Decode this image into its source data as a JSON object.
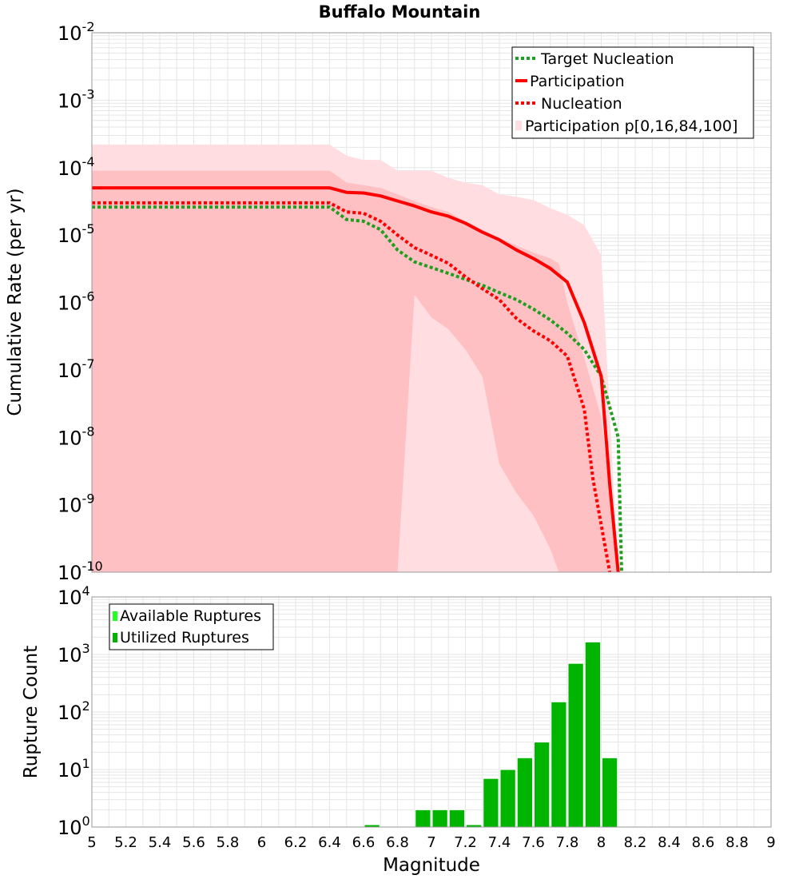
{
  "title": "Buffalo Mountain",
  "xlabel": "Magnitude",
  "x_ticks": [
    "5",
    "5.2",
    "5.4",
    "5.6",
    "5.8",
    "6",
    "6.2",
    "6.4",
    "6.6",
    "6.8",
    "7",
    "7.2",
    "7.4",
    "7.6",
    "7.8",
    "8",
    "8.2",
    "8.4",
    "8.6",
    "8.8",
    "9"
  ],
  "colors": {
    "participation": "#ff0000",
    "nucleation": "#ff0000",
    "target": "#1f9f1f",
    "band_outer": "#ffdde0",
    "band_inner": "#ffc0c4",
    "available": "#22ff22",
    "utilized": "#00b400",
    "grid": "#e6e6e6"
  },
  "chart_data": [
    {
      "type": "line",
      "ylabel": "Cumulative Rate (per yr)",
      "yscale": "log",
      "xlim": [
        5,
        9
      ],
      "ylim": [
        1e-10,
        0.01
      ],
      "y_ticks": [
        {
          "base": "10",
          "exp": "-2"
        },
        {
          "base": "10",
          "exp": "-3"
        },
        {
          "base": "10",
          "exp": "-4"
        },
        {
          "base": "10",
          "exp": "-5"
        },
        {
          "base": "10",
          "exp": "-6"
        },
        {
          "base": "10",
          "exp": "-7"
        },
        {
          "base": "10",
          "exp": "-8"
        },
        {
          "base": "10",
          "exp": "-9"
        },
        {
          "base": "10",
          "exp": "-10"
        }
      ],
      "legend": [
        "Target Nucleation",
        "Participation",
        "Nucleation",
        "Participation p[0,16,84,100]"
      ],
      "legend_position": "top-right",
      "band_outer": {
        "x": [
          5.0,
          6.4,
          6.5,
          6.6,
          6.7,
          6.8,
          6.9,
          7.0,
          7.1,
          7.2,
          7.3,
          7.4,
          7.5,
          7.6,
          7.7,
          7.8,
          7.9,
          8.0,
          8.1
        ],
        "upper": [
          0.00022,
          0.00022,
          0.00015,
          0.00013,
          0.00013,
          9e-05,
          9e-05,
          9e-05,
          7e-05,
          6e-05,
          5.5e-05,
          4e-05,
          3.7e-05,
          3.3e-05,
          2.5e-05,
          2e-05,
          1.4e-05,
          5e-06,
          1e-10
        ],
        "lower": [
          1e-10,
          1e-10,
          1e-10,
          1e-10,
          1e-10,
          1e-10,
          1e-10,
          1e-10,
          1e-10,
          1e-10,
          1e-10,
          1e-10,
          1e-10,
          1e-10,
          1e-10,
          1e-10,
          1e-10,
          1e-10,
          1e-10
        ]
      },
      "band_inner": {
        "x": [
          5.0,
          6.4,
          6.5,
          6.6,
          6.7,
          6.8,
          6.9,
          7.0,
          7.1,
          7.2,
          7.3,
          7.4,
          7.5,
          7.6,
          7.7,
          7.75,
          7.8,
          7.9,
          8.0,
          8.1
        ],
        "upper": [
          9e-05,
          9e-05,
          6e-05,
          5.5e-05,
          5e-05,
          4e-05,
          3.2e-05,
          2.6e-05,
          2.2e-05,
          1.6e-05,
          1.2e-05,
          9e-06,
          7e-06,
          5.5e-06,
          4.5e-06,
          3.8e-06,
          1e-06,
          1.5e-07,
          2e-08,
          1e-10
        ],
        "lower": [
          1e-10,
          1e-10,
          1e-10,
          1e-10,
          1e-10,
          1e-10,
          1.3e-06,
          6e-07,
          4e-07,
          2e-07,
          8e-08,
          4e-09,
          1.5e-09,
          7e-10,
          2.2e-10,
          1e-10,
          1e-10,
          1e-10,
          1e-10,
          1e-10
        ]
      },
      "series": [
        {
          "name": "Participation",
          "x": [
            5.0,
            6.4,
            6.5,
            6.6,
            6.7,
            6.8,
            6.9,
            7.0,
            7.1,
            7.2,
            7.3,
            7.4,
            7.5,
            7.6,
            7.7,
            7.8,
            7.9,
            8.0,
            8.05,
            8.1
          ],
          "y": [
            5e-05,
            5e-05,
            4.3e-05,
            4.2e-05,
            3.8e-05,
            3.2e-05,
            2.7e-05,
            2.2e-05,
            1.9e-05,
            1.5e-05,
            1.1e-05,
            8.5e-06,
            6e-06,
            4.5e-06,
            3.2e-06,
            2e-06,
            5e-07,
            8e-08,
            2e-09,
            1e-10
          ]
        },
        {
          "name": "Nucleation",
          "x": [
            5.0,
            6.4,
            6.5,
            6.6,
            6.7,
            6.8,
            6.9,
            7.0,
            7.1,
            7.2,
            7.3,
            7.4,
            7.5,
            7.6,
            7.7,
            7.8,
            7.9,
            7.95,
            8.0,
            8.05
          ],
          "y": [
            3e-05,
            3e-05,
            2.2e-05,
            2.1e-05,
            1.6e-05,
            1e-05,
            6.5e-06,
            5e-06,
            3.8e-06,
            2.4e-06,
            1.6e-06,
            1.1e-06,
            5.8e-07,
            3.8e-07,
            2.7e-07,
            1.6e-07,
            2.6e-08,
            2.5e-09,
            5e-10,
            1e-10
          ]
        },
        {
          "name": "Target Nucleation",
          "x": [
            5.0,
            6.4,
            6.5,
            6.6,
            6.7,
            6.8,
            6.9,
            7.0,
            7.1,
            7.2,
            7.3,
            7.4,
            7.5,
            7.6,
            7.7,
            7.8,
            7.9,
            8.0,
            8.1,
            8.12
          ],
          "y": [
            2.6e-05,
            2.6e-05,
            1.7e-05,
            1.6e-05,
            1.2e-05,
            6e-06,
            4e-06,
            3.3e-06,
            2.7e-06,
            2.2e-06,
            1.8e-06,
            1.4e-06,
            1.1e-06,
            8e-07,
            5.5e-07,
            3.5e-07,
            2e-07,
            8e-08,
            1e-08,
            1e-10
          ]
        }
      ]
    },
    {
      "type": "bar",
      "ylabel": "Rupture Count",
      "yscale": "log",
      "xlim": [
        5,
        9
      ],
      "ylim": [
        1,
        10000
      ],
      "y_ticks": [
        {
          "base": "10",
          "exp": "4"
        },
        {
          "base": "10",
          "exp": "3"
        },
        {
          "base": "10",
          "exp": "2"
        },
        {
          "base": "10",
          "exp": "1"
        },
        {
          "base": "10",
          "exp": "0"
        }
      ],
      "legend": [
        "Available Ruptures",
        "Utilized Ruptures"
      ],
      "legend_position": "top-left",
      "bin_width": 0.1,
      "bins": [
        {
          "x": 6.6,
          "count": 1.1
        },
        {
          "x": 6.9,
          "count": 2
        },
        {
          "x": 7.0,
          "count": 2
        },
        {
          "x": 7.1,
          "count": 2
        },
        {
          "x": 7.2,
          "count": 1.1
        },
        {
          "x": 7.3,
          "count": 7
        },
        {
          "x": 7.4,
          "count": 10
        },
        {
          "x": 7.5,
          "count": 16
        },
        {
          "x": 7.6,
          "count": 30
        },
        {
          "x": 7.7,
          "count": 150
        },
        {
          "x": 7.8,
          "count": 700
        },
        {
          "x": 7.9,
          "count": 1650
        },
        {
          "x": 8.0,
          "count": 16
        }
      ]
    }
  ]
}
